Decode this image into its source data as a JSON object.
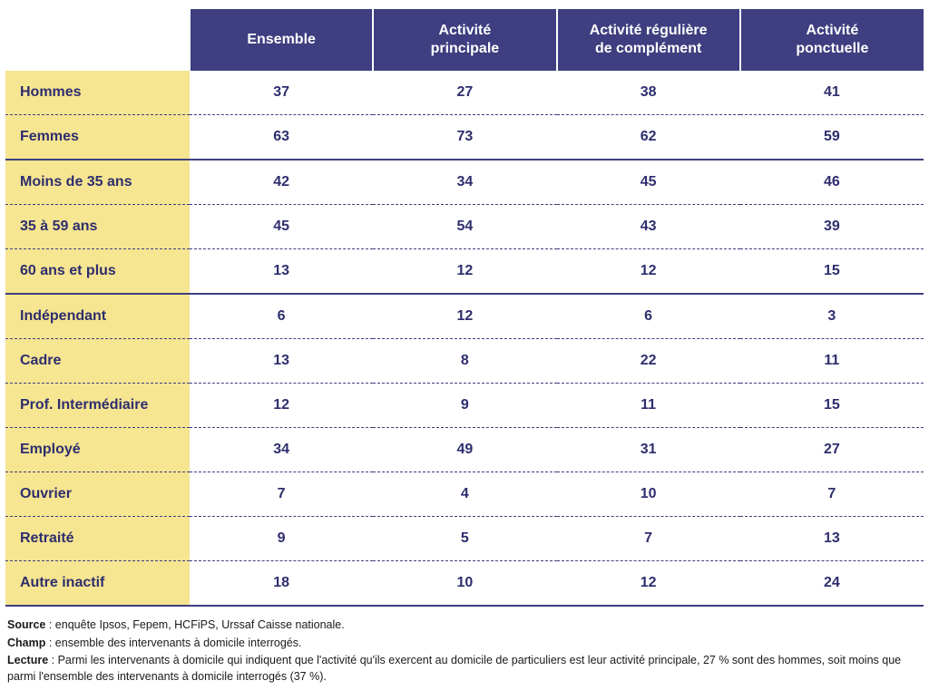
{
  "table": {
    "header_bg": "#3e3e80",
    "header_text_color": "#ffffff",
    "rowlabel_bg": "#f6e591",
    "text_color": "#2e2e6e",
    "dash_color": "#3e3e80",
    "columns": [
      "Ensemble",
      "Activité\nprincipale",
      "Activité régulière\nde complément",
      "Activité\nponctuelle"
    ],
    "sections": [
      {
        "rows": [
          {
            "label": "Hommes",
            "values": [
              37,
              27,
              38,
              41
            ]
          },
          {
            "label": "Femmes",
            "values": [
              63,
              73,
              62,
              59
            ]
          }
        ]
      },
      {
        "rows": [
          {
            "label": "Moins de 35 ans",
            "values": [
              42,
              34,
              45,
              46
            ]
          },
          {
            "label": "35 à 59 ans",
            "values": [
              45,
              54,
              43,
              39
            ]
          },
          {
            "label": "60 ans et plus",
            "values": [
              13,
              12,
              12,
              15
            ]
          }
        ]
      },
      {
        "rows": [
          {
            "label": "Indépendant",
            "values": [
              6,
              12,
              6,
              3
            ]
          },
          {
            "label": "Cadre",
            "values": [
              13,
              8,
              22,
              11
            ]
          },
          {
            "label": "Prof. Intermédiaire",
            "values": [
              12,
              9,
              11,
              15
            ]
          },
          {
            "label": "Employé",
            "values": [
              34,
              49,
              31,
              27
            ]
          },
          {
            "label": "Ouvrier",
            "values": [
              7,
              4,
              10,
              7
            ]
          },
          {
            "label": "Retraité",
            "values": [
              9,
              5,
              7,
              13
            ]
          },
          {
            "label": "Autre inactif",
            "values": [
              18,
              10,
              12,
              24
            ]
          }
        ]
      }
    ]
  },
  "footnotes": {
    "source_label": "Source",
    "source_text": " : enquête Ipsos, Fepem, HCFiPS, Urssaf Caisse nationale.",
    "champ_label": "Champ",
    "champ_text": " : ensemble des intervenants à domicile interrogés.",
    "lecture_label": "Lecture",
    "lecture_text": " : Parmi les intervenants à domicile qui indiquent que l'activité qu'ils exercent au domicile de particuliers est leur activité principale, 27 % sont des hommes, soit moins que parmi l'ensemble des intervenants à domicile interrogés (37 %)."
  }
}
